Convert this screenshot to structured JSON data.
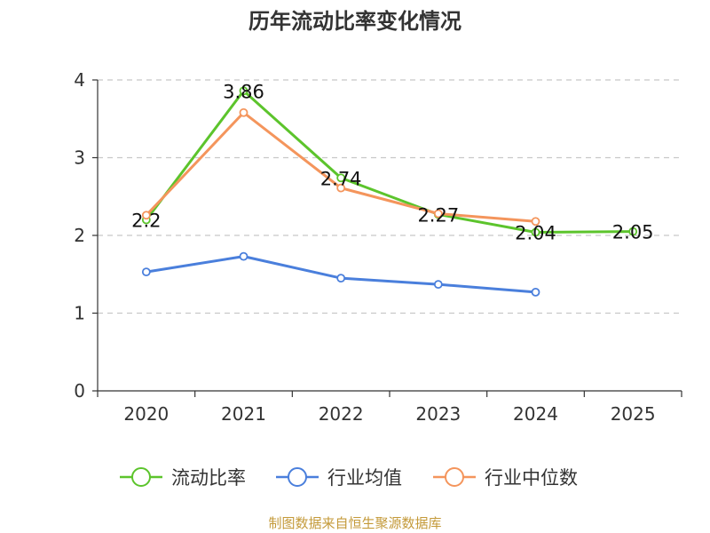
{
  "chart_data": {
    "type": "line",
    "title": "历年流动比率变化情况",
    "categories": [
      "2020",
      "2021",
      "2022",
      "2023",
      "2024",
      "2025"
    ],
    "ylim": [
      0,
      4
    ],
    "yticks": [
      0,
      1,
      2,
      3,
      4
    ],
    "grid": true,
    "legend_position": "bottom",
    "series": [
      {
        "name": "流动比率",
        "color": "#5cc42c",
        "values": [
          2.2,
          3.86,
          2.74,
          2.27,
          2.04,
          2.05
        ],
        "labels": [
          "2.2",
          "3.86",
          "2.74",
          "2.27",
          "2.04",
          "2.05"
        ]
      },
      {
        "name": "行业均值",
        "color": "#4a7fdc",
        "values": [
          1.53,
          1.73,
          1.45,
          1.37,
          1.27,
          null
        ]
      },
      {
        "name": "行业中位数",
        "color": "#f4955c",
        "values": [
          2.26,
          3.58,
          2.61,
          2.28,
          2.18,
          null
        ]
      }
    ],
    "source": "制图数据来自恒生聚源数据库"
  }
}
